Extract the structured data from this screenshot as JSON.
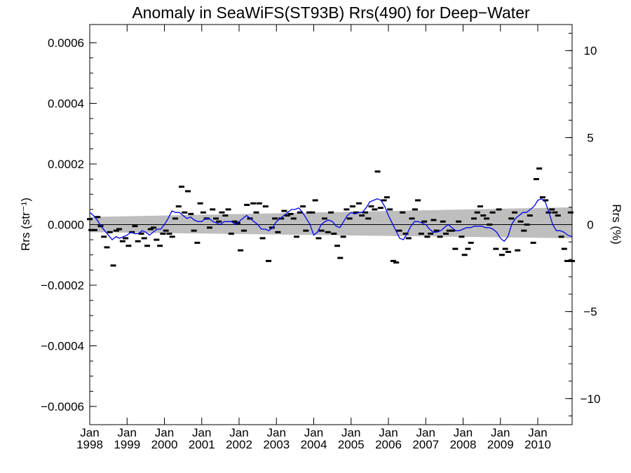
{
  "chart_data": {
    "type": "scatter",
    "title": "Anomaly in SeaWiFS(ST93B) Rrs(490) for Deep−Water",
    "ylabel": "Rrs (str⁻¹)",
    "y2label": "Rrs (%)",
    "xlim": [
      1998.0,
      2010.92
    ],
    "ylim": [
      -0.00066,
      0.00066
    ],
    "y2lim": [
      -11.5,
      11.5
    ],
    "grid": false,
    "x_tick_labels": [
      {
        "x": 1998,
        "line1": "Jan",
        "line2": "1998"
      },
      {
        "x": 1999,
        "line1": "Jan",
        "line2": "1999"
      },
      {
        "x": 2000,
        "line1": "Jan",
        "line2": "2000"
      },
      {
        "x": 2001,
        "line1": "Jan",
        "line2": "2001"
      },
      {
        "x": 2002,
        "line1": "Jan",
        "line2": "2002"
      },
      {
        "x": 2003,
        "line1": "Jan",
        "line2": "2003"
      },
      {
        "x": 2004,
        "line1": "Jan",
        "line2": "2004"
      },
      {
        "x": 2005,
        "line1": "Jan",
        "line2": "2005"
      },
      {
        "x": 2006,
        "line1": "Jan",
        "line2": "2006"
      },
      {
        "x": 2007,
        "line1": "Jan",
        "line2": "2007"
      },
      {
        "x": 2008,
        "line1": "Jan",
        "line2": "2008"
      },
      {
        "x": 2009,
        "line1": "Jan",
        "line2": "2009"
      },
      {
        "x": 2010,
        "line1": "Jan",
        "line2": "2010"
      }
    ],
    "y_tick_labels": [
      {
        "value": 0.0006,
        "label": "0.0006"
      },
      {
        "value": 0.0004,
        "label": "0.0004"
      },
      {
        "value": 0.0002,
        "label": "0.0002"
      },
      {
        "value": 0.0,
        "label": "0.0000"
      },
      {
        "value": -0.0002,
        "label": "−0.0002"
      },
      {
        "value": -0.0004,
        "label": "−0.0004"
      },
      {
        "value": -0.0006,
        "label": "−0.0006"
      }
    ],
    "y2_tick_labels": [
      {
        "value": 10,
        "label": "10"
      },
      {
        "value": 5,
        "label": "5"
      },
      {
        "value": 0,
        "label": "0"
      },
      {
        "value": -5,
        "label": "−5"
      },
      {
        "value": -10,
        "label": "−10"
      }
    ],
    "colors": {
      "points": "#000000",
      "smooth_line": "#0000ee",
      "band": "#bebebe",
      "zero_line": "#000000"
    },
    "confidence_band": {
      "x": [
        1998.0,
        2010.92
      ],
      "upper": [
        2.5e-05,
        5.7e-05
      ],
      "lower": [
        -2.5e-05,
        -4.5e-05
      ]
    },
    "points": [
      [
        1998.0,
        1.8e-05
      ],
      [
        1998.04,
        -1.8e-05
      ],
      [
        1998.13,
        -1.8e-05
      ],
      [
        1998.21,
        2.5e-05
      ],
      [
        1998.29,
        -5e-06
      ],
      [
        1998.38,
        -4e-05
      ],
      [
        1998.46,
        -7.5e-05
      ],
      [
        1998.54,
        -2.5e-05
      ],
      [
        1998.63,
        -0.000135
      ],
      [
        1998.71,
        -2e-05
      ],
      [
        1998.79,
        -1.5e-05
      ],
      [
        1998.88,
        -5.5e-05
      ],
      [
        1998.96,
        -4.5e-05
      ],
      [
        1999.04,
        -7e-05
      ],
      [
        1999.13,
        -2.5e-05
      ],
      [
        1999.21,
        -5e-06
      ],
      [
        1999.29,
        -5.5e-05
      ],
      [
        1999.38,
        -3e-05
      ],
      [
        1999.46,
        -4.5e-05
      ],
      [
        1999.54,
        -7e-05
      ],
      [
        1999.63,
        -1.5e-05
      ],
      [
        1999.71,
        -1e-05
      ],
      [
        1999.79,
        -5e-05
      ],
      [
        1999.88,
        -7e-05
      ],
      [
        1999.96,
        -3e-05
      ],
      [
        2000.04,
        -2e-05
      ],
      [
        2000.13,
        -3e-05
      ],
      [
        2000.21,
        -4e-05
      ],
      [
        2000.29,
        2e-05
      ],
      [
        2000.38,
        6e-05
      ],
      [
        2000.46,
        0.000125
      ],
      [
        2000.54,
        4e-05
      ],
      [
        2000.63,
        0.00011
      ],
      [
        2000.71,
        3.5e-05
      ],
      [
        2000.79,
        -2e-05
      ],
      [
        2000.88,
        -6e-05
      ],
      [
        2000.96,
        7e-05
      ],
      [
        2001.04,
        4e-05
      ],
      [
        2001.13,
        2e-05
      ],
      [
        2001.21,
        -1e-05
      ],
      [
        2001.29,
        5e-05
      ],
      [
        2001.38,
        2e-05
      ],
      [
        2001.46,
        1e-05
      ],
      [
        2001.54,
        4e-05
      ],
      [
        2001.63,
        3e-05
      ],
      [
        2001.71,
        5e-05
      ],
      [
        2001.79,
        -3e-05
      ],
      [
        2001.88,
        1e-05
      ],
      [
        2001.96,
        5e-06
      ],
      [
        2002.04,
        -8.5e-05
      ],
      [
        2002.13,
        -2e-05
      ],
      [
        2002.21,
        6.5e-05
      ],
      [
        2002.29,
        2e-05
      ],
      [
        2002.38,
        7e-05
      ],
      [
        2002.46,
        4e-05
      ],
      [
        2002.54,
        7e-05
      ],
      [
        2002.63,
        -4.5e-05
      ],
      [
        2002.71,
        6e-05
      ],
      [
        2002.79,
        -0.00012
      ],
      [
        2002.88,
        -1e-05
      ],
      [
        2002.96,
        2e-05
      ],
      [
        2003.04,
        -2.5e-05
      ],
      [
        2003.13,
        2e-05
      ],
      [
        2003.21,
        4.5e-05
      ],
      [
        2003.29,
        3e-05
      ],
      [
        2003.38,
        3.5e-05
      ],
      [
        2003.46,
        2e-05
      ],
      [
        2003.54,
        -4e-05
      ],
      [
        2003.63,
        4e-05
      ],
      [
        2003.71,
        6e-05
      ],
      [
        2003.79,
        -2e-05
      ],
      [
        2003.88,
        4e-05
      ],
      [
        2003.96,
        4e-05
      ],
      [
        2004.04,
        8e-05
      ],
      [
        2004.13,
        -4.5e-05
      ],
      [
        2004.21,
        -2e-05
      ],
      [
        2004.29,
        2e-05
      ],
      [
        2004.38,
        -2.5e-05
      ],
      [
        2004.46,
        4e-05
      ],
      [
        2004.54,
        -3e-05
      ],
      [
        2004.63,
        -7e-05
      ],
      [
        2004.71,
        -0.00011
      ],
      [
        2004.79,
        -4e-05
      ],
      [
        2004.88,
        5e-05
      ],
      [
        2004.96,
        2e-05
      ],
      [
        2005.04,
        6e-05
      ],
      [
        2005.13,
        4e-05
      ],
      [
        2005.21,
        7e-05
      ],
      [
        2005.29,
        3e-05
      ],
      [
        2005.38,
        4e-05
      ],
      [
        2005.46,
        2e-05
      ],
      [
        2005.54,
        6e-05
      ],
      [
        2005.63,
        5e-05
      ],
      [
        2005.71,
        0.000175
      ],
      [
        2005.79,
        5.5e-05
      ],
      [
        2005.88,
        8e-05
      ],
      [
        2005.96,
        9e-05
      ],
      [
        2006.04,
        5e-05
      ],
      [
        2006.13,
        -0.00012
      ],
      [
        2006.21,
        -0.000125
      ],
      [
        2006.29,
        -2e-05
      ],
      [
        2006.38,
        4e-05
      ],
      [
        2006.46,
        -3e-05
      ],
      [
        2006.54,
        -4.5e-05
      ],
      [
        2006.63,
        2e-05
      ],
      [
        2006.71,
        5e-05
      ],
      [
        2006.79,
        8e-05
      ],
      [
        2006.88,
        -3e-05
      ],
      [
        2006.96,
        1e-05
      ],
      [
        2007.04,
        -4e-05
      ],
      [
        2007.13,
        -3e-05
      ],
      [
        2007.21,
        1.5e-05
      ],
      [
        2007.29,
        -2e-05
      ],
      [
        2007.38,
        -4e-05
      ],
      [
        2007.46,
        1e-05
      ],
      [
        2007.54,
        -3e-05
      ],
      [
        2007.63,
        -2e-05
      ],
      [
        2007.71,
        -2e-05
      ],
      [
        2007.79,
        -8e-05
      ],
      [
        2007.88,
        1e-05
      ],
      [
        2007.96,
        -4e-05
      ],
      [
        2008.04,
        -0.0001
      ],
      [
        2008.13,
        -8e-05
      ],
      [
        2008.21,
        -6e-05
      ],
      [
        2008.29,
        2e-05
      ],
      [
        2008.38,
        4e-05
      ],
      [
        2008.46,
        6e-05
      ],
      [
        2008.54,
        3e-05
      ],
      [
        2008.63,
        2e-05
      ],
      [
        2008.71,
        0.0
      ],
      [
        2008.79,
        4e-05
      ],
      [
        2008.88,
        -8e-05
      ],
      [
        2008.96,
        5e-05
      ],
      [
        2009.04,
        -0.0001
      ],
      [
        2009.13,
        -8e-05
      ],
      [
        2009.21,
        -9e-05
      ],
      [
        2009.29,
        2e-05
      ],
      [
        2009.38,
        4e-05
      ],
      [
        2009.46,
        -8.5e-05
      ],
      [
        2009.54,
        1e-05
      ],
      [
        2009.63,
        -2e-05
      ],
      [
        2009.71,
        0.0
      ],
      [
        2009.79,
        3e-05
      ],
      [
        2009.88,
        -6e-05
      ],
      [
        2009.96,
        0.00015
      ],
      [
        2010.04,
        0.000185
      ],
      [
        2010.13,
        9e-05
      ],
      [
        2010.21,
        8e-05
      ],
      [
        2010.29,
        4e-05
      ],
      [
        2010.38,
        5e-05
      ],
      [
        2010.46,
        4e-05
      ],
      [
        2010.54,
        3e-05
      ],
      [
        2010.63,
        -4e-05
      ],
      [
        2010.71,
        -8e-05
      ],
      [
        2010.79,
        -0.00012
      ],
      [
        2010.88,
        4e-05
      ],
      [
        2010.92,
        -0.00012
      ]
    ],
    "smooth_line": {
      "x": [
        1998.0,
        1998.1,
        1998.2,
        1998.3,
        1998.4,
        1998.5,
        1998.6,
        1998.7,
        1998.8,
        1998.9,
        1999.0,
        1999.1,
        1999.2,
        1999.3,
        1999.4,
        1999.5,
        1999.6,
        1999.7,
        1999.8,
        1999.9,
        2000.0,
        2000.1,
        2000.2,
        2000.3,
        2000.4,
        2000.5,
        2000.6,
        2000.7,
        2000.8,
        2000.9,
        2001.0,
        2001.1,
        2001.2,
        2001.3,
        2001.4,
        2001.5,
        2001.6,
        2001.7,
        2001.8,
        2001.9,
        2002.0,
        2002.1,
        2002.2,
        2002.3,
        2002.4,
        2002.5,
        2002.6,
        2002.7,
        2002.8,
        2002.9,
        2003.0,
        2003.1,
        2003.2,
        2003.3,
        2003.4,
        2003.5,
        2003.6,
        2003.7,
        2003.8,
        2003.9,
        2004.0,
        2004.1,
        2004.2,
        2004.3,
        2004.4,
        2004.5,
        2004.6,
        2004.7,
        2004.8,
        2004.9,
        2005.0,
        2005.1,
        2005.2,
        2005.3,
        2005.4,
        2005.5,
        2005.6,
        2005.7,
        2005.8,
        2005.9,
        2006.0,
        2006.1,
        2006.2,
        2006.3,
        2006.4,
        2006.5,
        2006.6,
        2006.7,
        2006.8,
        2006.9,
        2007.0,
        2007.1,
        2007.2,
        2007.3,
        2007.4,
        2007.5,
        2007.6,
        2007.7,
        2007.8,
        2007.9,
        2008.0,
        2008.1,
        2008.2,
        2008.3,
        2008.4,
        2008.5,
        2008.6,
        2008.7,
        2008.8,
        2008.9,
        2009.0,
        2009.1,
        2009.2,
        2009.3,
        2009.4,
        2009.5,
        2009.6,
        2009.7,
        2009.8,
        2009.9,
        2010.0,
        2010.1,
        2010.2,
        2010.3,
        2010.4,
        2010.5,
        2010.6,
        2010.7,
        2010.8,
        2010.92
      ],
      "y": [
        4e-05,
        3e-05,
        1.5e-05,
        -5e-06,
        -2e-05,
        -3.5e-05,
        -5e-05,
        -4e-05,
        -4.5e-05,
        -4e-05,
        -3.5e-05,
        -2.5e-05,
        -3e-05,
        -3e-05,
        -2e-05,
        -2.5e-05,
        -3.5e-05,
        -2.5e-05,
        -1.5e-05,
        -1.5e-05,
        0.0,
        2e-05,
        4.5e-05,
        4e-05,
        4e-05,
        3e-05,
        2e-05,
        2.5e-05,
        1.5e-05,
        1e-05,
        1e-05,
        2e-05,
        2e-05,
        1e-05,
        5e-06,
        0.0,
        1e-05,
        1e-05,
        1e-05,
        0.0,
        1e-05,
        2e-05,
        3e-05,
        2e-05,
        1e-05,
        0.0,
        -1.5e-05,
        -1.5e-05,
        -2e-05,
        -1e-05,
        1e-05,
        2e-05,
        3e-05,
        4e-05,
        5e-05,
        5e-05,
        5.5e-05,
        4e-05,
        2e-05,
        0.0,
        -3.5e-05,
        -2.5e-05,
        0.0,
        1e-05,
        1.5e-05,
        1e-05,
        -5e-06,
        -1e-05,
        1e-05,
        3e-05,
        4e-05,
        3.5e-05,
        4e-05,
        4e-05,
        5.5e-05,
        7.5e-05,
        8e-05,
        8.5e-05,
        8e-05,
        6e-05,
        3e-05,
        5e-06,
        -2e-05,
        -4.5e-05,
        -5e-05,
        -3e-05,
        -5e-06,
        1e-05,
        1e-05,
        5e-06,
        0.0,
        -1.5e-05,
        -2.5e-05,
        -2.5e-05,
        -2e-05,
        -1e-05,
        0.0,
        -1e-05,
        -2e-05,
        -2e-05,
        -1.5e-05,
        -1e-05,
        -1e-05,
        -5e-06,
        -5e-06,
        -5e-06,
        -1e-05,
        -1e-05,
        -1.5e-05,
        -2.5e-05,
        -4.5e-05,
        -5.5e-05,
        -4e-05,
        0.0,
        2e-05,
        3e-05,
        4e-05,
        4e-05,
        5e-05,
        6e-05,
        8e-05,
        8.5e-05,
        7.5e-05,
        4e-05,
        0.0,
        -2e-05,
        -2e-05,
        -2.5e-05,
        -3.5e-05,
        -4e-05
      ]
    }
  }
}
